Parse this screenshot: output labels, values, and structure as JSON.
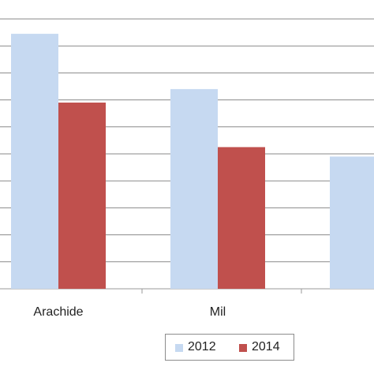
{
  "chart_data": {
    "type": "bar",
    "title": "",
    "xlabel": "",
    "ylabel": "",
    "categories": [
      "Arachide",
      "Mil",
      ""
    ],
    "series": [
      {
        "name": "2012",
        "color": "#c6d9f1",
        "values": [
          9.45,
          7.4,
          4.9
        ]
      },
      {
        "name": "2014",
        "color": "#c0504d",
        "values": [
          6.9,
          5.25,
          null
        ]
      }
    ],
    "ylim": [
      0,
      10
    ],
    "grid": true,
    "legend": "bottom"
  }
}
